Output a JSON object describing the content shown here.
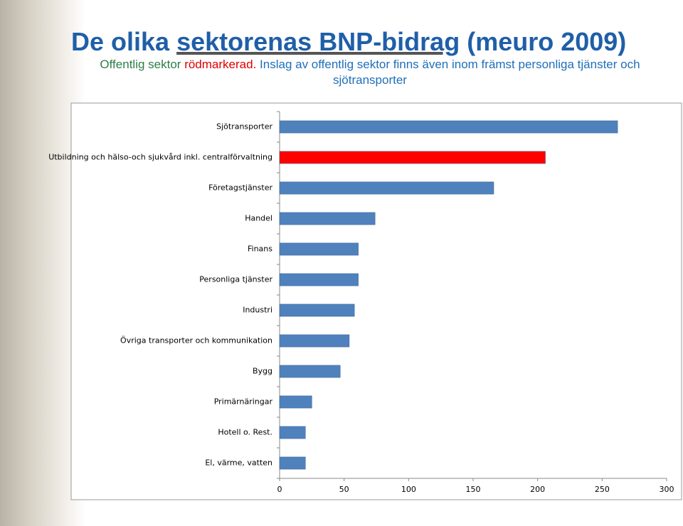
{
  "chart_data": {
    "type": "bar",
    "orientation": "horizontal",
    "title_parts": [
      "De olika",
      "sektorenas BNP-bidrag",
      "(meuro 2009)"
    ],
    "subtitle_parts": [
      "Offentlig sektor",
      "rödmarkerad.",
      "Inslag av offentlig sektor finns även inom främst personliga tjänster och sjötransporter"
    ],
    "categories": [
      "Sjötransporter",
      "Utbildning och hälso-och sjukvård inkl. centralförvaltning",
      "Företagstjänster",
      "Handel",
      "Finans",
      "Personliga tjänster",
      "Industri",
      "Övriga transporter och kommunikation",
      "Bygg",
      "Primärnäringar",
      "Hotell o. Rest.",
      "El, värme, vatten"
    ],
    "values": [
      262,
      206,
      166,
      74,
      61,
      61,
      58,
      54,
      47,
      25,
      20,
      20
    ],
    "colors": [
      "#4f81bd",
      "#ff0000",
      "#4f81bd",
      "#4f81bd",
      "#4f81bd",
      "#4f81bd",
      "#4f81bd",
      "#4f81bd",
      "#4f81bd",
      "#4f81bd",
      "#4f81bd",
      "#4f81bd"
    ],
    "xlim": [
      0,
      300
    ],
    "xticks": [
      0,
      50,
      100,
      150,
      200,
      250,
      300
    ],
    "grid": false
  }
}
